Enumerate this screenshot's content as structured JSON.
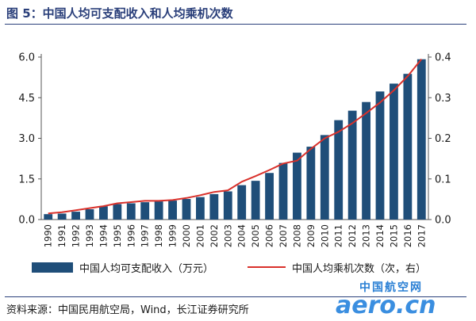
{
  "figure_title": "图 5：中国人均可支配收入和人均乘机次数",
  "source_text": "资料来源：中国民用航空局，Wind，长江证券研究所",
  "watermark": {
    "cn": "中国航空网",
    "en": "aero.cn"
  },
  "colors": {
    "bar": "#1f4e79",
    "line": "#d9312b",
    "title": "#2a3f7a"
  },
  "chart_data": {
    "type": "bar",
    "categories": [
      "1990",
      "1991",
      "1992",
      "1993",
      "1994",
      "1995",
      "1996",
      "1997",
      "1998",
      "1999",
      "2000",
      "2001",
      "2002",
      "2003",
      "2004",
      "2005",
      "2006",
      "2007",
      "2008",
      "2009",
      "2010",
      "2011",
      "2012",
      "2013",
      "2014",
      "2015",
      "2016",
      "2017"
    ],
    "series": [
      {
        "name": "中国人均可支配收入（万元）",
        "type": "bar",
        "axis": "left",
        "values": [
          0.2,
          0.22,
          0.29,
          0.38,
          0.49,
          0.57,
          0.6,
          0.64,
          0.67,
          0.7,
          0.76,
          0.83,
          0.94,
          1.04,
          1.27,
          1.43,
          1.72,
          2.09,
          2.47,
          2.69,
          3.12,
          3.67,
          4.02,
          4.34,
          4.73,
          5.02,
          5.38,
          5.92
        ]
      },
      {
        "name": "中国人均乘机次数（次，右）",
        "type": "line",
        "axis": "right",
        "values": [
          0.015,
          0.018,
          0.023,
          0.028,
          0.033,
          0.04,
          0.043,
          0.046,
          0.046,
          0.048,
          0.053,
          0.06,
          0.068,
          0.072,
          0.093,
          0.107,
          0.122,
          0.138,
          0.145,
          0.174,
          0.2,
          0.216,
          0.237,
          0.262,
          0.288,
          0.318,
          0.353,
          0.395
        ]
      }
    ],
    "left_axis": {
      "ylim": [
        0,
        6.0
      ],
      "ticks": [
        "0.0",
        "1.5",
        "3.0",
        "4.5",
        "6.0"
      ]
    },
    "right_axis": {
      "ylim": [
        0,
        0.4
      ],
      "ticks": [
        "0.0",
        "0.1",
        "0.2",
        "0.3",
        "0.4"
      ]
    },
    "grid": false,
    "legend_position": "bottom"
  }
}
